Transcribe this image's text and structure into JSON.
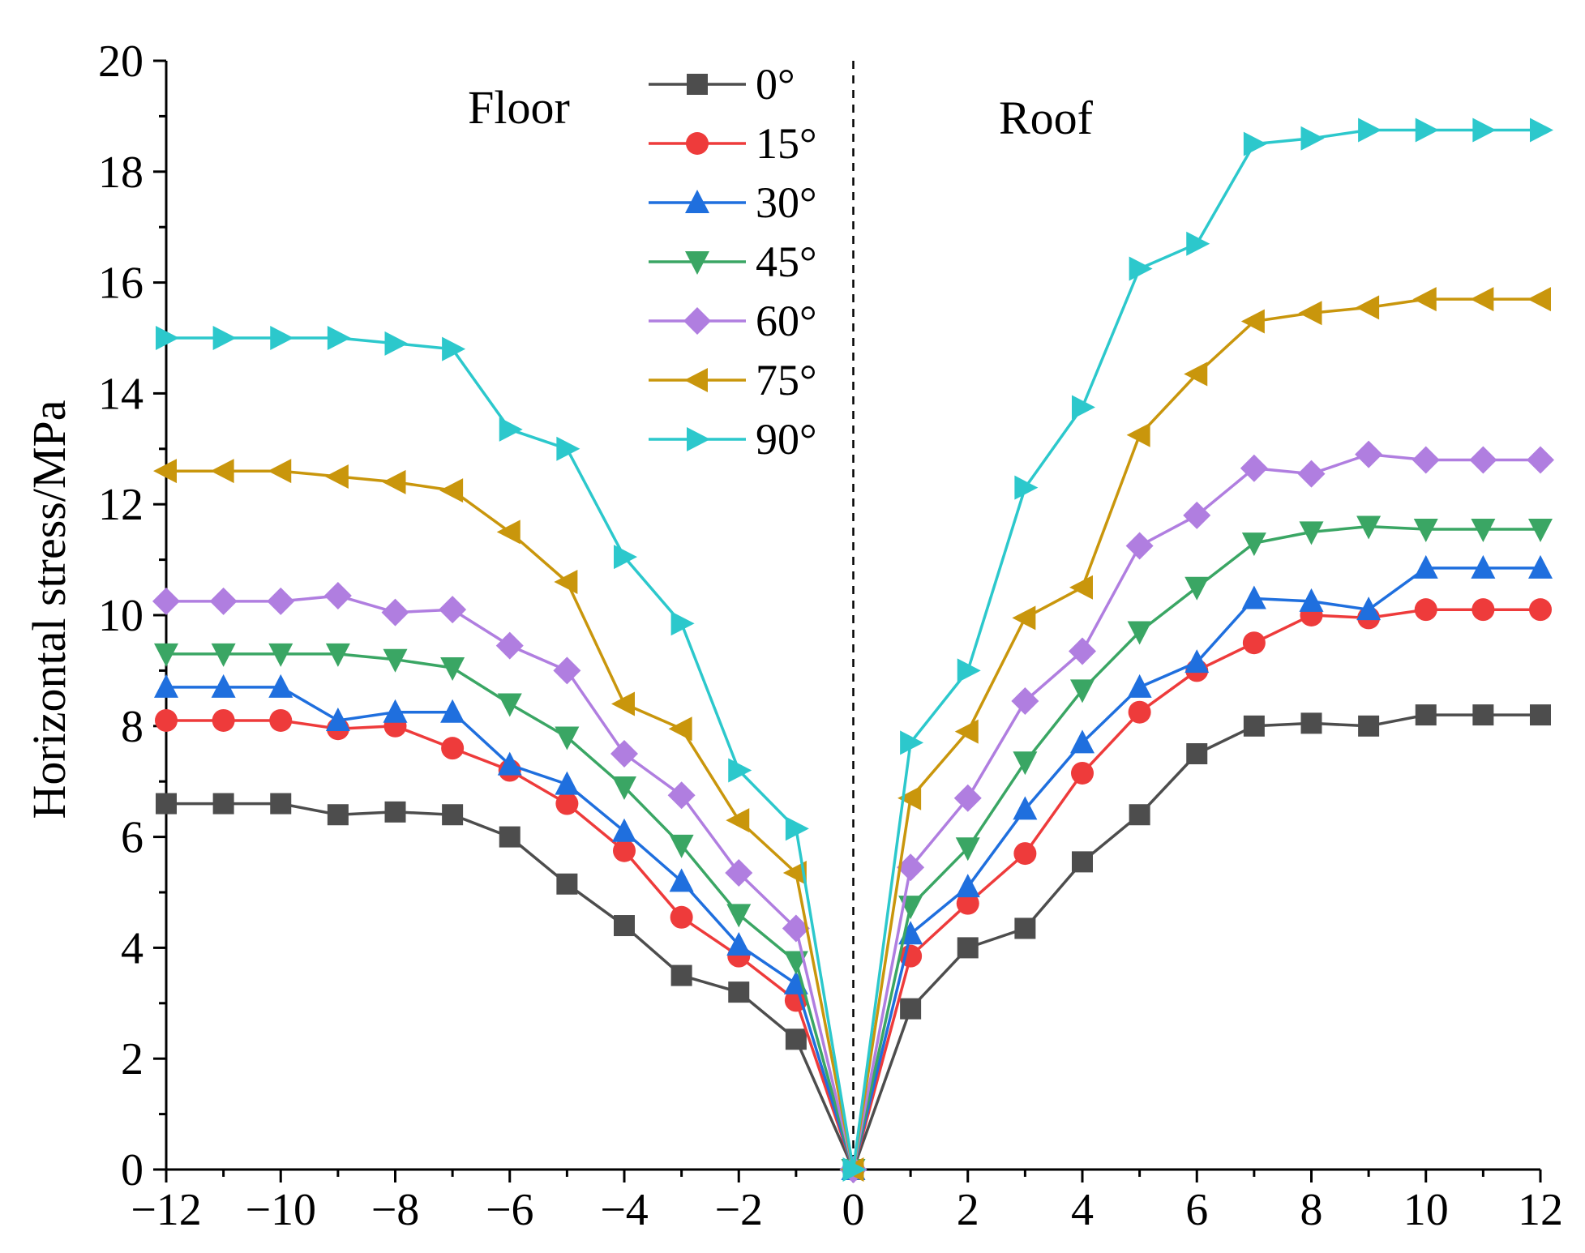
{
  "chart_data": {
    "type": "line",
    "title": "",
    "xlabel": "",
    "ylabel": "Horizontal stress/MPa",
    "xlim": [
      -12,
      12
    ],
    "ylim": [
      0,
      20
    ],
    "xticks": [
      -12,
      -10,
      -8,
      -6,
      -4,
      -2,
      0,
      2,
      4,
      6,
      8,
      10,
      12
    ],
    "xtick_labels": [
      "−12",
      "−10",
      "−8",
      "−6",
      "−4",
      "−2",
      "0",
      "2",
      "4",
      "6",
      "8",
      "10",
      "12"
    ],
    "yticks": [
      0,
      2,
      4,
      6,
      8,
      10,
      12,
      14,
      16,
      18,
      20
    ],
    "ytick_labels": [
      "0",
      "2",
      "4",
      "6",
      "8",
      "10",
      "12",
      "14",
      "16",
      "18",
      "20"
    ],
    "annotations": [
      "Floor",
      "Roof"
    ],
    "divider_x": 0,
    "legend_position": "top-center",
    "x": [
      -12,
      -11,
      -10,
      -9,
      -8,
      -7,
      -6,
      -5,
      -4,
      -3,
      -2,
      -1,
      0,
      1,
      2,
      3,
      4,
      5,
      6,
      7,
      8,
      9,
      10,
      11,
      12
    ],
    "series": [
      {
        "name": "0°",
        "color": "#4d4d4d",
        "marker": "square",
        "values": [
          6.6,
          6.6,
          6.6,
          6.4,
          6.45,
          6.4,
          6.0,
          5.15,
          4.4,
          3.5,
          3.2,
          2.35,
          0,
          2.9,
          4.0,
          4.35,
          5.55,
          6.4,
          7.5,
          8.0,
          8.05,
          8.0,
          8.2,
          8.2,
          8.2
        ]
      },
      {
        "name": "15°",
        "color": "#ee3b3b",
        "marker": "circle",
        "values": [
          8.1,
          8.1,
          8.1,
          7.95,
          8.0,
          7.6,
          7.2,
          6.6,
          5.75,
          4.55,
          3.85,
          3.05,
          0,
          3.85,
          4.8,
          5.7,
          7.15,
          8.25,
          9.0,
          9.5,
          10.0,
          9.95,
          10.1,
          10.1,
          10.1
        ]
      },
      {
        "name": "30°",
        "color": "#1f6fde",
        "marker": "triangle-up",
        "values": [
          8.7,
          8.7,
          8.7,
          8.1,
          8.25,
          8.25,
          7.3,
          6.95,
          6.1,
          5.2,
          4.05,
          3.35,
          0,
          4.25,
          5.1,
          6.5,
          7.7,
          8.7,
          9.15,
          10.3,
          10.25,
          10.1,
          10.85,
          10.85,
          10.85
        ]
      },
      {
        "name": "45°",
        "color": "#3aa664",
        "marker": "triangle-down",
        "values": [
          9.3,
          9.3,
          9.3,
          9.3,
          9.2,
          9.05,
          8.4,
          7.8,
          6.9,
          5.85,
          4.6,
          3.75,
          0,
          4.75,
          5.8,
          7.35,
          8.65,
          9.7,
          10.5,
          11.3,
          11.5,
          11.6,
          11.55,
          11.55,
          11.55
        ]
      },
      {
        "name": "60°",
        "color": "#b07ee0",
        "marker": "diamond",
        "values": [
          10.25,
          10.25,
          10.25,
          10.35,
          10.05,
          10.1,
          9.45,
          9.0,
          7.5,
          6.75,
          5.35,
          4.35,
          0,
          5.45,
          6.7,
          8.45,
          9.35,
          11.25,
          11.8,
          12.65,
          12.55,
          12.9,
          12.8,
          12.8,
          12.8
        ]
      },
      {
        "name": "75°",
        "color": "#c9960c",
        "marker": "triangle-left",
        "values": [
          12.6,
          12.6,
          12.6,
          12.5,
          12.4,
          12.25,
          11.5,
          10.6,
          8.4,
          7.95,
          6.3,
          5.35,
          0,
          6.7,
          7.9,
          9.95,
          10.5,
          13.25,
          14.35,
          15.3,
          15.45,
          15.55,
          15.7,
          15.7,
          15.7
        ]
      },
      {
        "name": "90°",
        "color": "#2cc8cc",
        "marker": "triangle-right",
        "values": [
          15.0,
          15.0,
          15.0,
          15.0,
          14.9,
          14.8,
          13.35,
          13.0,
          11.05,
          9.85,
          7.2,
          6.15,
          0,
          7.7,
          9.0,
          12.3,
          13.75,
          16.25,
          16.7,
          18.5,
          18.6,
          18.75,
          18.75,
          18.75,
          18.75
        ]
      }
    ]
  }
}
